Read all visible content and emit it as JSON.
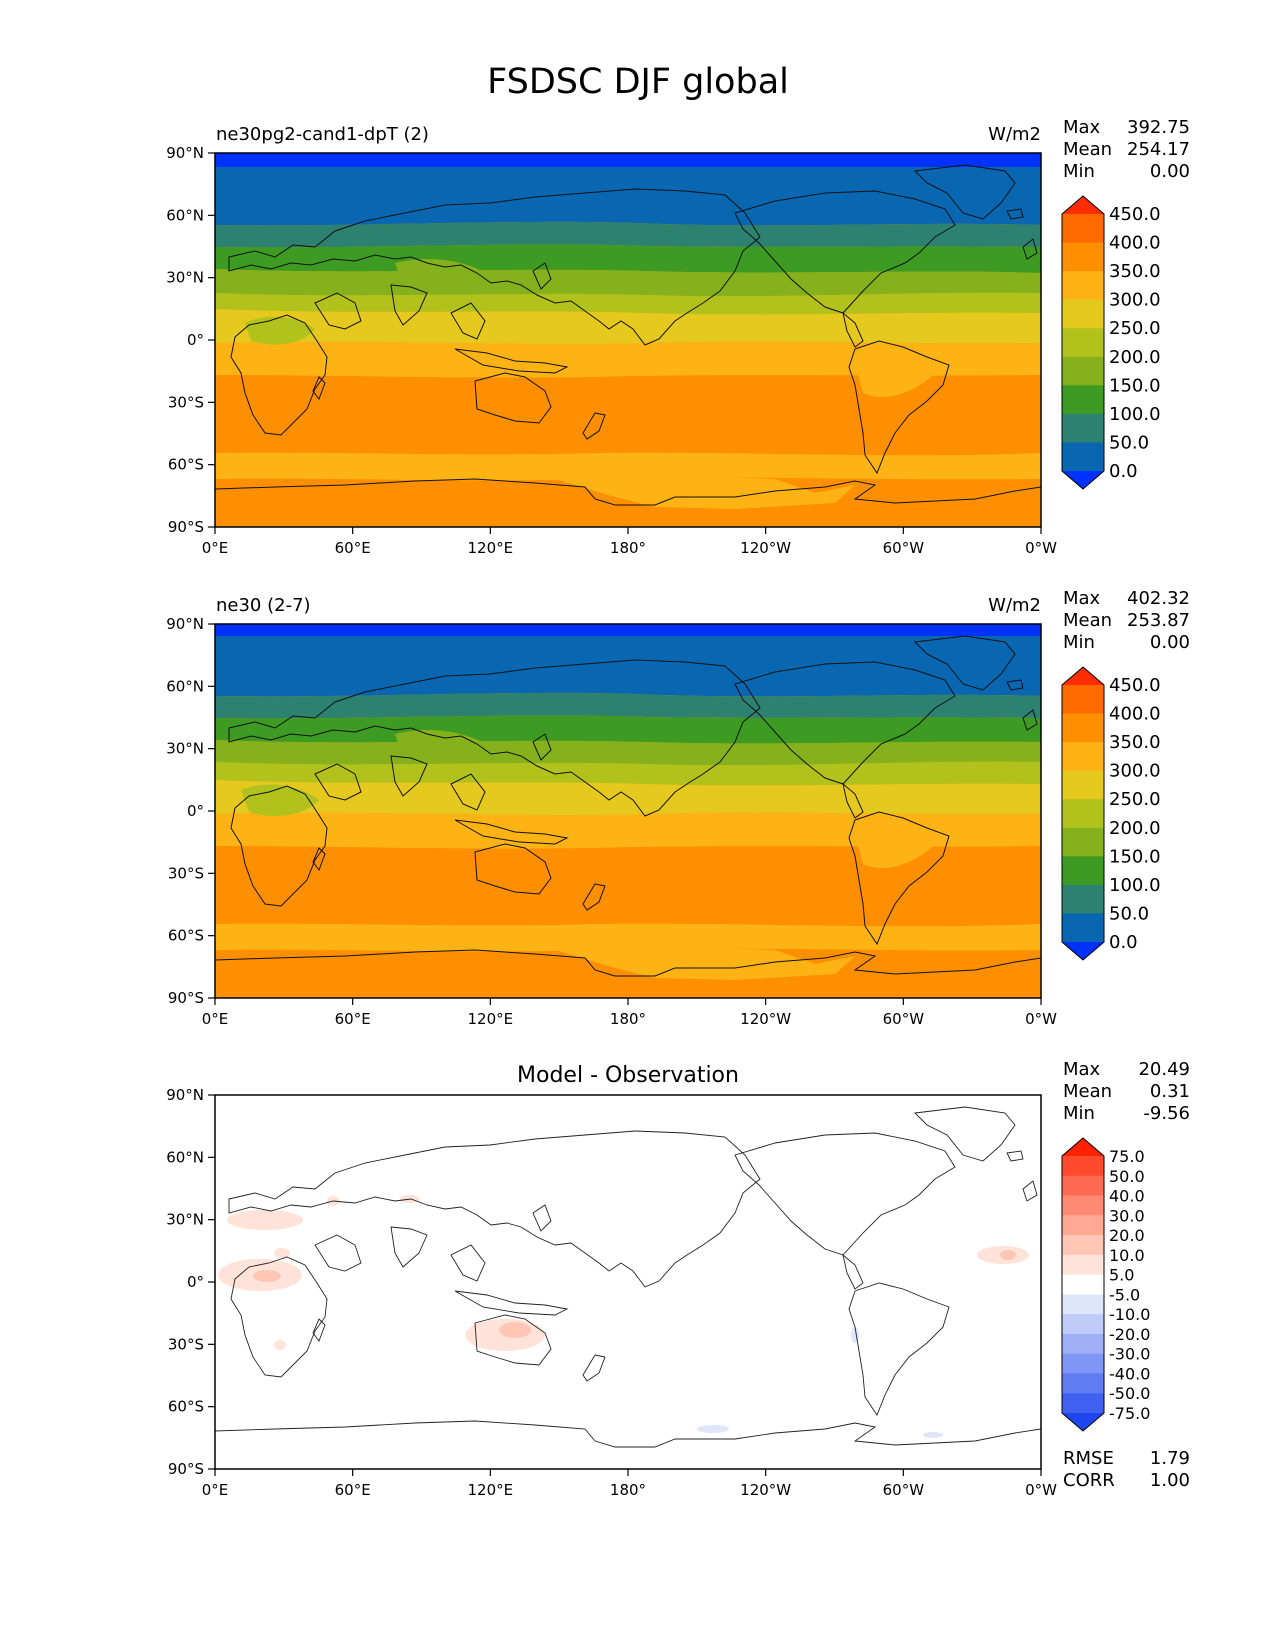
{
  "figure": {
    "title": "FSDSC DJF global"
  },
  "lat_ticks": [
    "90°N",
    "60°N",
    "30°N",
    "0°",
    "30°S",
    "60°S",
    "90°S"
  ],
  "lon_ticks": [
    "0°E",
    "60°E",
    "120°E",
    "180°",
    "120°W",
    "60°W",
    "0°W"
  ],
  "panels": [
    {
      "title_left": "ne30pg2-cand1-dpT (2)",
      "title_center": "",
      "units": "W/m2",
      "stats": [
        {
          "label": "Max",
          "value": "392.75"
        },
        {
          "label": "Mean",
          "value": "254.17"
        },
        {
          "label": "Min",
          "value": "0.00"
        }
      ],
      "colorbar_labels": [
        "450.0",
        "400.0",
        "350.0",
        "300.0",
        "250.0",
        "200.0",
        "150.0",
        "100.0",
        "50.0",
        "0.0"
      ],
      "colorbar_colors": [
        "#ff2d00",
        "#fe6a00",
        "#fe8f00",
        "#feb314",
        "#e6c91e",
        "#b1c21d",
        "#84b11c",
        "#3d9a23",
        "#2c8170",
        "#0867b0",
        "#0032ff"
      ],
      "footer_stats": []
    },
    {
      "title_left": "ne30 (2-7)",
      "title_center": "",
      "units": "W/m2",
      "stats": [
        {
          "label": "Max",
          "value": "402.32"
        },
        {
          "label": "Mean",
          "value": "253.87"
        },
        {
          "label": "Min",
          "value": "0.00"
        }
      ],
      "colorbar_labels": [
        "450.0",
        "400.0",
        "350.0",
        "300.0",
        "250.0",
        "200.0",
        "150.0",
        "100.0",
        "50.0",
        "0.0"
      ],
      "colorbar_colors": [
        "#ff2d00",
        "#fe6a00",
        "#fe8f00",
        "#feb314",
        "#e6c91e",
        "#b1c21d",
        "#84b11c",
        "#3d9a23",
        "#2c8170",
        "#0867b0",
        "#0032ff"
      ],
      "footer_stats": []
    },
    {
      "title_left": "",
      "title_center": "Model - Observation",
      "units": "",
      "stats": [
        {
          "label": "Max",
          "value": "20.49"
        },
        {
          "label": "Mean",
          "value": "0.31"
        },
        {
          "label": "Min",
          "value": "-9.56"
        }
      ],
      "colorbar_labels": [
        "75.0",
        "50.0",
        "40.0",
        "30.0",
        "20.0",
        "10.0",
        "5.0",
        "-5.0",
        "-10.0",
        "-20.0",
        "-30.0",
        "-40.0",
        "-50.0",
        "-75.0"
      ],
      "colorbar_colors": [
        "#ff2200",
        "#ff4a2d",
        "#ff6b52",
        "#ff8a73",
        "#ffa894",
        "#ffc6b6",
        "#ffe2d8",
        "#ffffff",
        "#dfe6fa",
        "#bfcbf8",
        "#9fb0f6",
        "#8096f4",
        "#607cf3",
        "#4061f1",
        "#1f45ef"
      ],
      "footer_stats": [
        {
          "label": "RMSE",
          "value": "1.79"
        },
        {
          "label": "CORR",
          "value": "1.00"
        }
      ]
    }
  ]
}
